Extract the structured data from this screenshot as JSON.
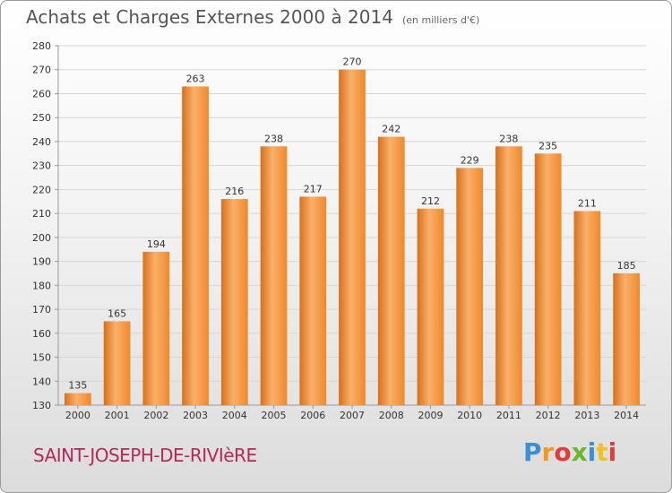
{
  "title": "Achats et Charges Externes 2000 à 2014",
  "unit": "(en milliers d'€)",
  "commune": "SAINT-JOSEPH-DE-RIVIèRE",
  "logo": {
    "letters": [
      "P",
      "r",
      "o",
      "x",
      "i",
      "t",
      "i"
    ],
    "colors": [
      "#3a8fd6",
      "#f29a1c",
      "#e23b3b",
      "#6bb82f",
      "#3a8fd6",
      "#f2c31c",
      "#e23b3b"
    ]
  },
  "colors": {
    "bar": "#f0892a",
    "bar_light": "#f9b06a",
    "bar_dark": "#d8701a"
  },
  "chart_data": {
    "type": "bar",
    "categories": [
      "2000",
      "2001",
      "2002",
      "2003",
      "2004",
      "2005",
      "2006",
      "2007",
      "2008",
      "2009",
      "2010",
      "2011",
      "2012",
      "2013",
      "2014"
    ],
    "values": [
      135,
      165,
      194,
      263,
      216,
      238,
      217,
      270,
      242,
      212,
      229,
      238,
      235,
      211,
      185
    ],
    "ylim": [
      130,
      280
    ],
    "yticks": [
      130,
      140,
      150,
      160,
      170,
      180,
      190,
      200,
      210,
      220,
      230,
      240,
      250,
      260,
      270,
      280
    ],
    "grid": true
  }
}
